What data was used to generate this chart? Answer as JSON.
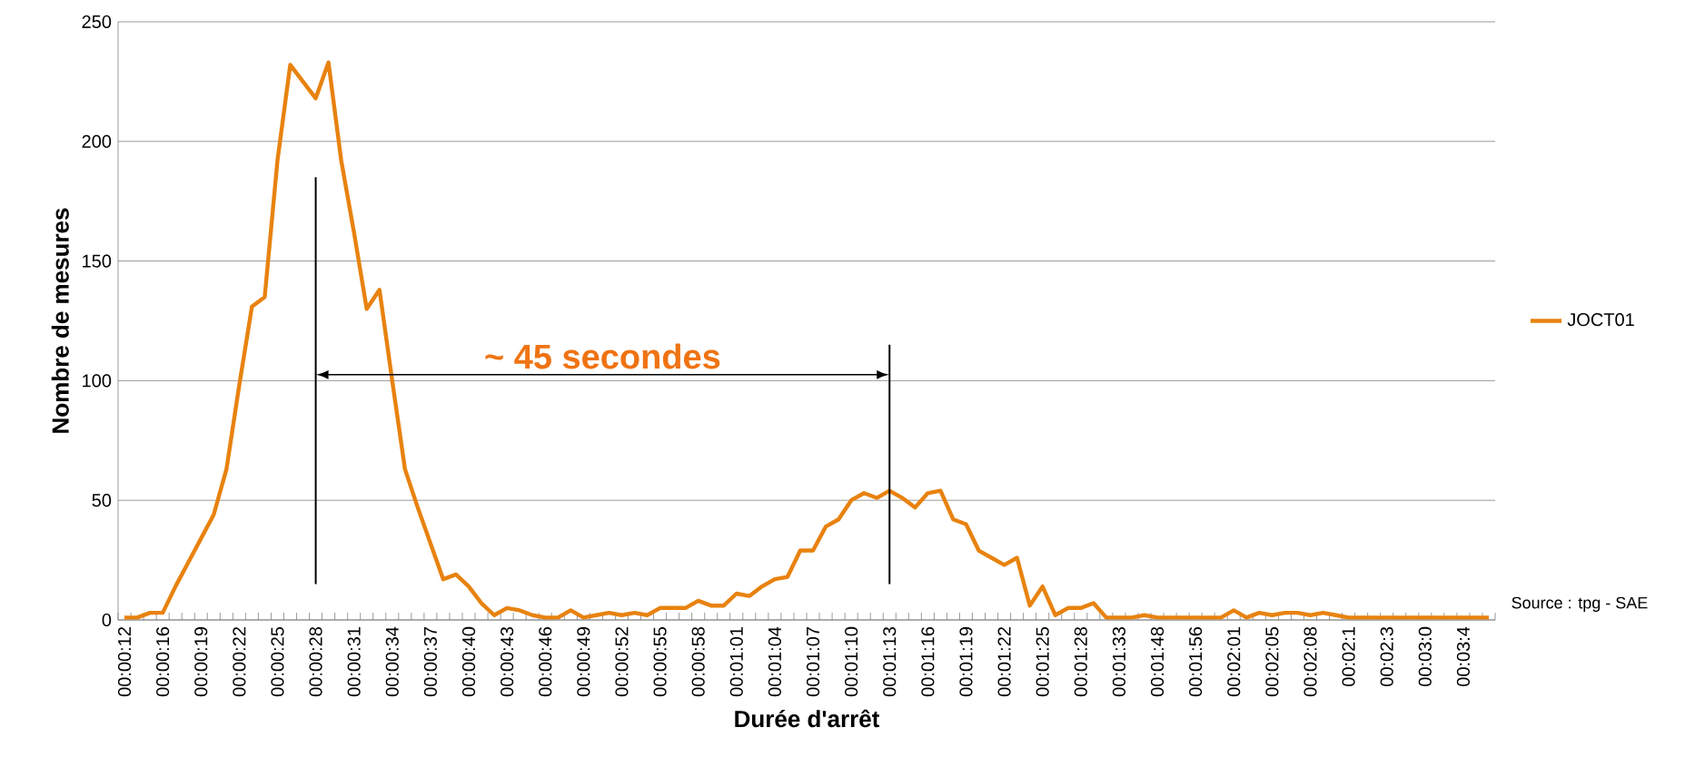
{
  "chart_data": {
    "type": "line",
    "xlabel": "Durée d'arrêt",
    "ylabel": "Nombre de mesures",
    "categories": [
      "00:00:12",
      null,
      null,
      "00:00:16",
      null,
      null,
      "00:00:19",
      null,
      null,
      "00:00:22",
      null,
      null,
      "00:00:25",
      null,
      null,
      "00:00:28",
      null,
      null,
      "00:00:31",
      null,
      null,
      "00:00:34",
      null,
      null,
      "00:00:37",
      null,
      null,
      "00:00:40",
      null,
      null,
      "00:00:43",
      null,
      null,
      "00:00:46",
      null,
      null,
      "00:00:49",
      null,
      null,
      "00:00:52",
      null,
      null,
      "00:00:55",
      null,
      null,
      "00:00:58",
      null,
      null,
      "00:01:01",
      null,
      null,
      "00:01:04",
      null,
      null,
      "00:01:07",
      null,
      null,
      "00:01:10",
      null,
      null,
      "00:01:13",
      null,
      null,
      "00:01:16",
      null,
      null,
      "00:01:19",
      null,
      null,
      "00:01:22",
      null,
      null,
      "00:01:25",
      null,
      null,
      "00:01:28",
      null,
      null,
      "00:01:33",
      null,
      null,
      "00:01:48",
      null,
      null,
      "00:01:56",
      null,
      null,
      "00:02:01",
      null,
      null,
      "00:02:05",
      null,
      null,
      "00:02:08",
      null,
      null,
      "00:02:1",
      null,
      null,
      "00:02:3",
      null,
      null,
      "00:03:0",
      null,
      null,
      "00:03:4",
      null,
      null
    ],
    "series": [
      {
        "name": "JOCT01",
        "color": "#e8820f",
        "values": [
          1,
          1,
          3,
          3,
          14,
          24,
          34,
          44,
          63,
          98,
          131,
          135,
          192,
          232,
          225,
          218,
          233,
          192,
          162,
          130,
          138,
          100,
          63,
          47,
          32,
          17,
          19,
          14,
          7,
          2,
          5,
          4,
          2,
          1,
          1,
          4,
          1,
          2,
          3,
          2,
          3,
          2,
          5,
          5,
          5,
          8,
          6,
          6,
          11,
          10,
          14,
          17,
          18,
          29,
          29,
          39,
          42,
          50,
          53,
          51,
          54,
          51,
          47,
          53,
          54,
          42,
          40,
          29,
          26,
          23,
          26,
          6,
          14,
          2,
          5,
          5,
          7,
          1,
          1,
          1,
          2,
          1,
          1,
          1,
          1,
          1,
          1,
          4,
          1,
          3,
          2,
          3,
          3,
          2,
          3,
          2,
          1,
          1,
          1,
          1,
          1,
          1,
          1,
          1,
          1,
          1,
          1,
          1
        ]
      }
    ],
    "ylim": [
      0,
      250
    ],
    "yticks": [
      0,
      50,
      100,
      150,
      200,
      250
    ],
    "grid": "y",
    "legend": "right",
    "ref_lines": [
      {
        "axis": "x",
        "value": "00:00:28",
        "color": "#000000"
      },
      {
        "axis": "x",
        "value": "00:01:13",
        "color": "#000000"
      }
    ],
    "annotations": [
      "~ 45 secondes",
      "Source : tpg - SAE"
    ]
  }
}
